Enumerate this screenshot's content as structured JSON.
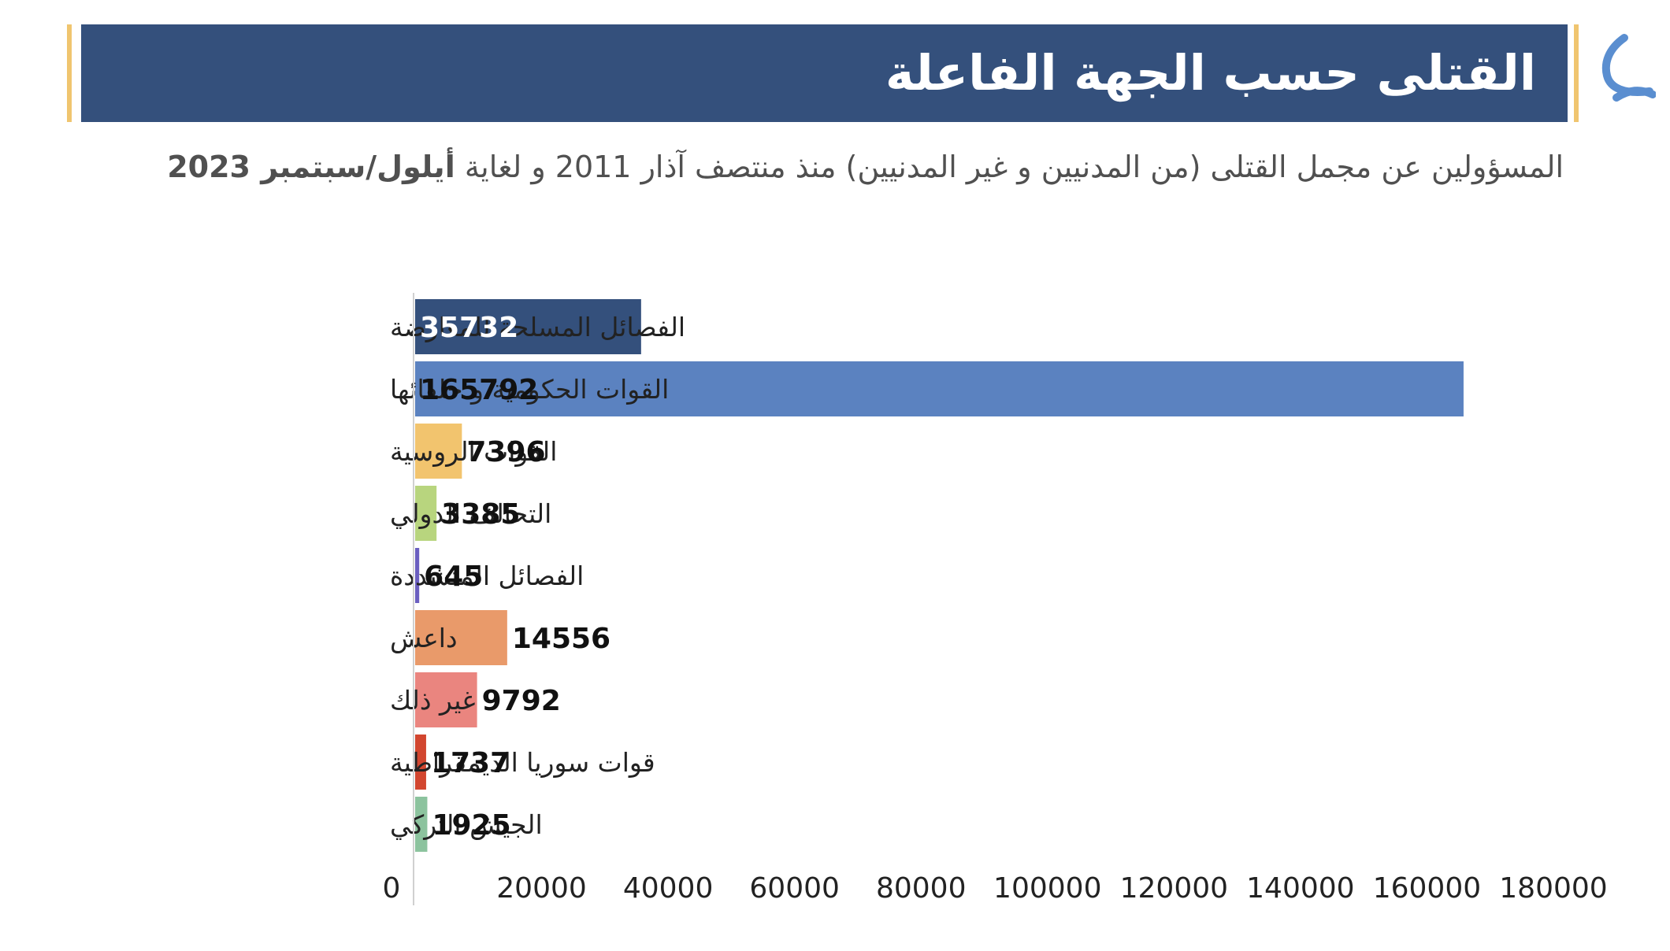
{
  "header": {
    "title": "القتلى حسب الجهة الفاعلة",
    "subtitle_text": "المسؤولين عن مجمل القتلى (من المدنيين و غير المدنيين) منذ منتصف آذار 2011 و لغاية ",
    "subtitle_bold": "أيلول/سبتمبر 2023"
  },
  "logo": {
    "icon": "snhr-logo-icon",
    "color": "#5a8ed0"
  },
  "colors": {
    "banner": "#34507c",
    "accent_line": "#f0c56f"
  },
  "chart_data": {
    "type": "bar",
    "orientation": "horizontal",
    "categories": [
      "الفصائل المسلحة للمعارضة",
      "القوات الحكومية و حلفائها",
      "القوات الروسية",
      "التحالف الدولي",
      "الفصائل المتشددة",
      "داعش",
      "غير ذلك",
      "قوات سوريا الديمقراطية",
      "الجيش التركي"
    ],
    "values": [
      35732,
      165792,
      7396,
      3385,
      645,
      14556,
      9792,
      1737,
      1925
    ],
    "value_labels": [
      "35732",
      "165792",
      "7396",
      "3385",
      "645",
      "14556",
      "9792",
      "1737",
      "1925"
    ],
    "colors": [
      "#34507c",
      "#5b82c0",
      "#f2c46e",
      "#b8d57e",
      "#6b5fc0",
      "#e99a6a",
      "#ea857f",
      "#d2462f",
      "#8cc39e"
    ],
    "value_label_colors": [
      "#ffffff",
      "#111111",
      "#111111",
      "#111111",
      "#111111",
      "#111111",
      "#111111",
      "#111111",
      "#111111"
    ],
    "xlim": [
      0,
      180000
    ],
    "xticks": [
      0,
      20000,
      40000,
      60000,
      80000,
      100000,
      120000,
      140000,
      160000,
      180000
    ],
    "xtick_labels": [
      "0",
      "20000",
      "40000",
      "60000",
      "80000",
      "100000",
      "120000",
      "140000",
      "160000",
      "180000"
    ],
    "grid": false,
    "legend": "none"
  }
}
